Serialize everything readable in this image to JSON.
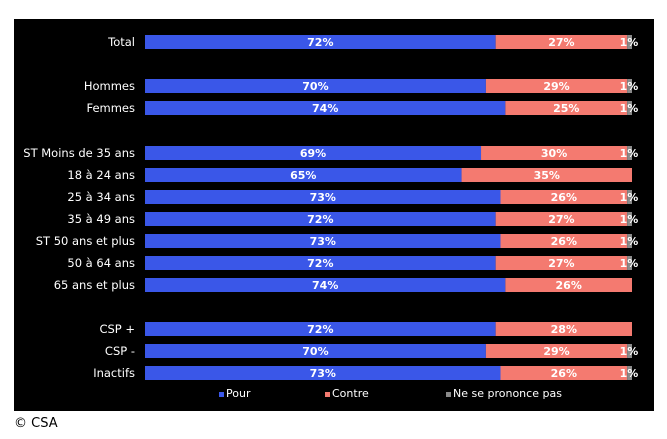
{
  "colors": {
    "pour": "#3a57e8",
    "contre": "#f47a70",
    "nsp": "#8a8a8a",
    "background": "#000000",
    "text": "#ffffff"
  },
  "chart_data": {
    "type": "bar",
    "orientation": "horizontal-stacked-100",
    "categories": [
      "Total",
      "Hommes",
      "Femmes",
      "ST Moins de 35 ans",
      "18 à 24 ans",
      "25 à 34 ans",
      "35 à 49 ans",
      "ST 50 ans et plus",
      "50 à 64 ans",
      "65 ans et plus",
      "CSP +",
      "CSP -",
      "Inactifs"
    ],
    "groups": [
      [
        0
      ],
      [
        1,
        2
      ],
      [
        3,
        4,
        5,
        6,
        7,
        8,
        9
      ],
      [
        10,
        11,
        12
      ]
    ],
    "series": [
      {
        "name": "Pour",
        "values": [
          72,
          70,
          74,
          69,
          65,
          73,
          72,
          73,
          72,
          74,
          72,
          70,
          73
        ]
      },
      {
        "name": "Contre",
        "values": [
          27,
          29,
          25,
          30,
          35,
          26,
          27,
          26,
          27,
          26,
          28,
          29,
          26
        ]
      },
      {
        "name": "Ne se prononce pas",
        "values": [
          1,
          1,
          1,
          1,
          0,
          1,
          1,
          1,
          1,
          0,
          0,
          1,
          1
        ]
      }
    ],
    "value_labels": [
      [
        "72%",
        "27%",
        "1%"
      ],
      [
        "70%",
        "29%",
        "1%"
      ],
      [
        "74%",
        "25%",
        "1%"
      ],
      [
        "69%",
        "30%",
        "1%"
      ],
      [
        "65%",
        "35%",
        ""
      ],
      [
        "73%",
        "26%",
        "1%"
      ],
      [
        "72%",
        "27%",
        "1%"
      ],
      [
        "73%",
        "26%",
        "1%"
      ],
      [
        "72%",
        "27%",
        "1%"
      ],
      [
        "74%",
        "26%",
        ""
      ],
      [
        "72%",
        "28%",
        ""
      ],
      [
        "70%",
        "29%",
        "1%"
      ],
      [
        "73%",
        "26%",
        "1%"
      ]
    ],
    "xlim": [
      0,
      100
    ],
    "legend_position": "bottom"
  },
  "footer": {
    "copyright": "© CSA"
  }
}
